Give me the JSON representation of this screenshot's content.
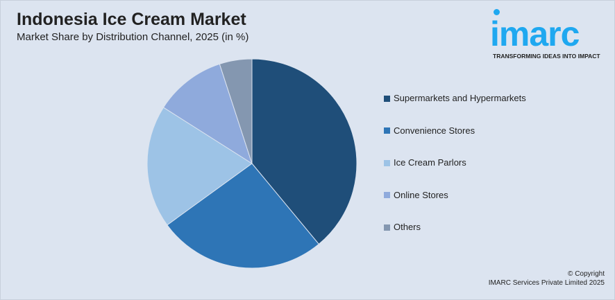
{
  "header": {
    "title": "Indonesia Ice Cream Market",
    "subtitle": "Market Share by Distribution Channel, 2025 (in %)"
  },
  "logo": {
    "word": "imarc",
    "tagline": "TRANSFORMING IDEAS INTO IMPACT",
    "color": "#1fa8f0"
  },
  "chart_data": {
    "type": "pie",
    "title": "Indonesia Ice Cream Market",
    "subtitle": "Market Share by Distribution Channel, 2025 (in %)",
    "legend_position": "right",
    "categories": [
      "Supermarkets and Hypermarkets",
      "Convenience Stores",
      "Ice Cream Parlors",
      "Online Stores",
      "Others"
    ],
    "values": [
      39,
      26,
      19,
      11,
      5
    ],
    "colors": [
      "#1f4e79",
      "#2e75b6",
      "#9dc3e6",
      "#8faadc",
      "#8497b0"
    ]
  },
  "footer": {
    "line1": "© Copyright",
    "line2": "IMARC Services Private Limited 2025"
  }
}
